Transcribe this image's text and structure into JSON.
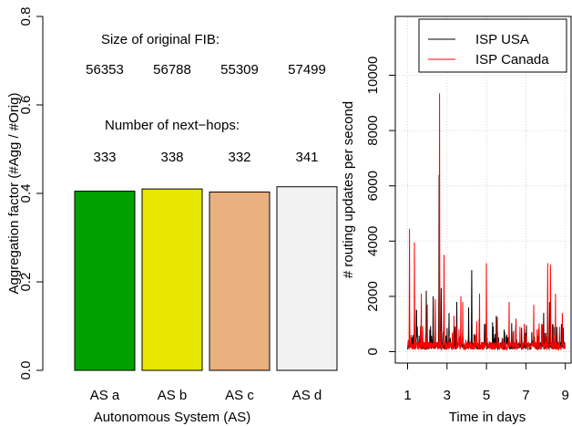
{
  "chart_data": [
    {
      "type": "bar",
      "categories": [
        "AS a",
        "AS b",
        "AS c",
        "AS d"
      ],
      "values": [
        0.405,
        0.41,
        0.403,
        0.415
      ],
      "colors": [
        "#00a000",
        "#e6e600",
        "#ebb07f",
        "#f2f2f2"
      ],
      "xlabel": "Autonomous System (AS)",
      "ylabel": "Aggregation factor (#Agg / #Orig)",
      "ylim": [
        0,
        0.8
      ],
      "yticks": [
        "0.0",
        "0.2",
        "0.4",
        "0.6",
        "0.8"
      ],
      "annotations": {
        "fib_title": "Size of original FIB:",
        "fib_values": [
          "56353",
          "56788",
          "55309",
          "57499"
        ],
        "nh_title": "Number of next−hops:",
        "nh_values": [
          "333",
          "338",
          "332",
          "341"
        ]
      }
    },
    {
      "type": "line",
      "xlabel": "Time in days",
      "ylabel": "# routing updates per second",
      "xlim": [
        1,
        9
      ],
      "ylim": [
        0,
        10000
      ],
      "xticks": [
        "1",
        "3",
        "5",
        "7",
        "9"
      ],
      "yticks": [
        "0",
        "2000",
        "4000",
        "6000",
        "8000",
        "10000"
      ],
      "grid": true,
      "legend_position": "top-right",
      "series": [
        {
          "name": "ISP USA",
          "color": "#000000",
          "peaks": [
            [
              1.45,
              1500
            ],
            [
              1.95,
              2200
            ],
            [
              2.3,
              2000
            ],
            [
              2.6,
              6400
            ],
            [
              2.7,
              2300
            ],
            [
              3.1,
              1400
            ],
            [
              3.5,
              1800
            ],
            [
              4.1,
              1600
            ],
            [
              4.25,
              2950
            ],
            [
              4.9,
              1000
            ],
            [
              5.5,
              1300
            ],
            [
              5.9,
              800
            ],
            [
              6.5,
              1100
            ],
            [
              7.3,
              700
            ],
            [
              7.9,
              1400
            ],
            [
              8.2,
              1800
            ],
            [
              8.5,
              950
            ],
            [
              8.8,
              1000
            ]
          ]
        },
        {
          "name": "ISP Canada",
          "color": "#ff0000",
          "peaks": [
            [
              1.1,
              4450
            ],
            [
              1.35,
              3950
            ],
            [
              1.7,
              2100
            ],
            [
              2.0,
              1700
            ],
            [
              2.4,
              1900
            ],
            [
              2.62,
              9350
            ],
            [
              2.85,
              3500
            ],
            [
              3.35,
              1300
            ],
            [
              3.7,
              2000
            ],
            [
              3.8,
              1800
            ],
            [
              4.5,
              1100
            ],
            [
              4.65,
              2100
            ],
            [
              5.0,
              3200
            ],
            [
              5.55,
              1250
            ],
            [
              6.15,
              1800
            ],
            [
              6.5,
              1200
            ],
            [
              6.7,
              900
            ],
            [
              7.4,
              1700
            ],
            [
              7.8,
              1000
            ],
            [
              8.1,
              3200
            ],
            [
              8.25,
              3150
            ],
            [
              8.5,
              2100
            ],
            [
              8.7,
              900
            ],
            [
              8.85,
              1400
            ]
          ]
        }
      ]
    }
  ]
}
